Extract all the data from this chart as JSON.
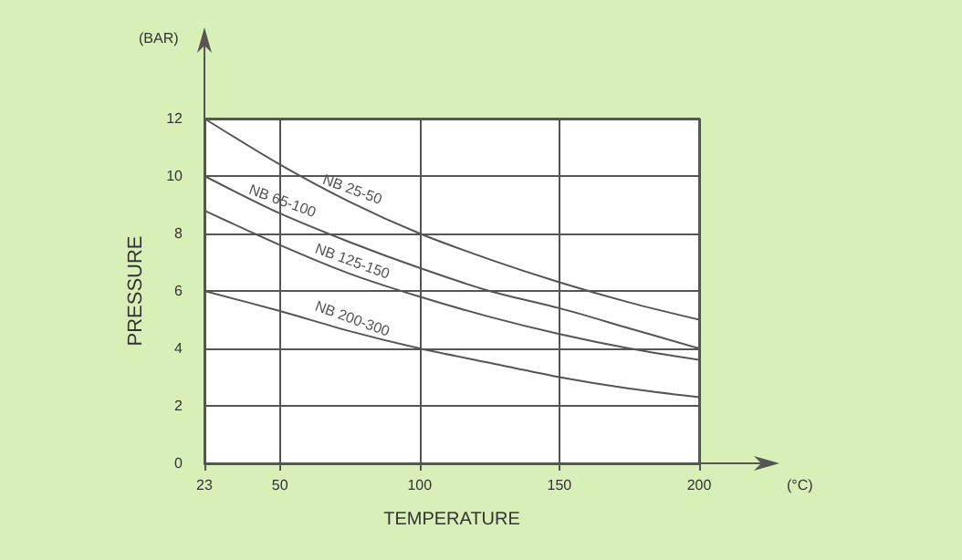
{
  "chart_data": {
    "type": "line",
    "xlabel": "TEMPERATURE",
    "ylabel": "PRESSURE",
    "annotations": [
      "(BAR)",
      "(°C)"
    ],
    "x": [
      23,
      50,
      75,
      100,
      125,
      150,
      175,
      200
    ],
    "series": [
      {
        "name": "NB 25-50",
        "color": "#555555",
        "values": [
          12,
          10.4,
          9.1,
          8.0,
          7.1,
          6.3,
          5.6,
          5.0
        ]
      },
      {
        "name": "NB 65-100",
        "color": "#555555",
        "values": [
          10,
          8.7,
          7.7,
          6.8,
          6.0,
          5.4,
          4.7,
          4.0
        ]
      },
      {
        "name": "NB 125-150",
        "color": "#555555",
        "values": [
          8.8,
          7.6,
          6.6,
          5.8,
          5.1,
          4.5,
          4.0,
          3.6
        ]
      },
      {
        "name": "NB 200-300",
        "color": "#555555",
        "values": [
          6.0,
          5.3,
          4.6,
          4.0,
          3.5,
          3.0,
          2.6,
          2.3
        ]
      }
    ],
    "xlim": [
      23,
      200
    ],
    "xticks": [
      23,
      50,
      100,
      150,
      200
    ],
    "ylim": [
      0,
      12
    ],
    "yticks": [
      0,
      2,
      4,
      6,
      8,
      10,
      12
    ],
    "grid": true,
    "legend": false,
    "marker": "none",
    "line_style": "solid"
  }
}
